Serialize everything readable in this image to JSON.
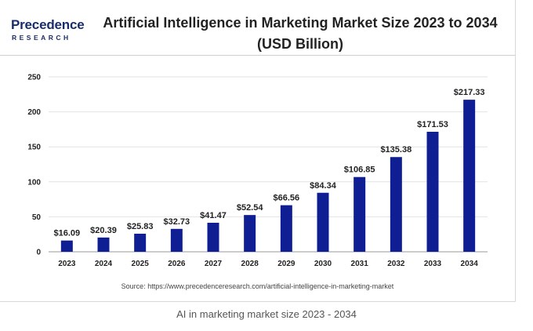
{
  "brand": {
    "logo_main": "Precedence",
    "logo_sub": "RESEARCH"
  },
  "colors": {
    "bar": "#0f1f93",
    "grid": "#e2e2e2",
    "axis": "#9a9a9a",
    "text": "#222222",
    "brand": "#1a2d6b"
  },
  "chart_data": {
    "type": "bar",
    "title": "Artificial Intelligence in Marketing Market Size 2023 to 2034 (USD Billion)",
    "categories": [
      "2023",
      "2024",
      "2025",
      "2026",
      "2027",
      "2028",
      "2029",
      "2030",
      "2031",
      "2032",
      "2033",
      "2034"
    ],
    "values": [
      16.09,
      20.39,
      25.83,
      32.73,
      41.47,
      52.54,
      66.56,
      84.34,
      106.85,
      135.38,
      171.53,
      217.33
    ],
    "data_labels": [
      "$16.09",
      "$20.39",
      "$25.83",
      "$32.73",
      "$41.47",
      "$52.54",
      "$66.56",
      "$84.34",
      "$106.85",
      "$135.38",
      "$171.53",
      "$217.33"
    ],
    "yticks": [
      0,
      50,
      100,
      150,
      200,
      250
    ],
    "ylim": [
      0,
      250
    ],
    "grid": true,
    "legend": "none"
  },
  "source": "Source: https://www.precedenceresearch.com/artificial-intelligence-in-marketing-market",
  "caption": "AI in marketing market size 2023 - 2034"
}
